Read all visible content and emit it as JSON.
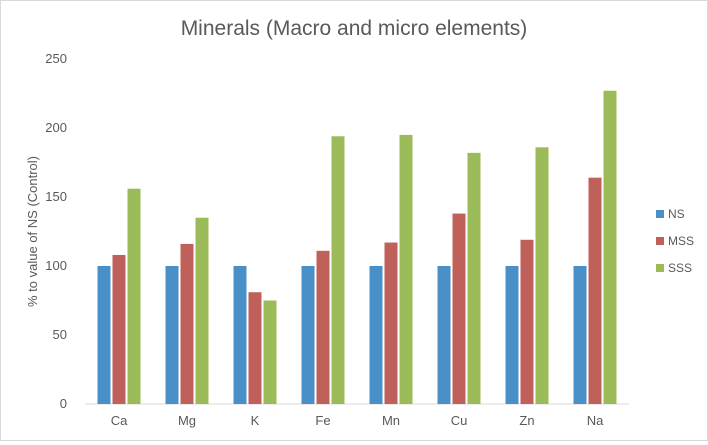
{
  "chart_data": {
    "type": "bar",
    "title": "Minerals (Macro and micro elements)",
    "xlabel": "",
    "ylabel": "% to value of NS (Control)",
    "ylim": [
      0,
      250
    ],
    "yticks": [
      0,
      50,
      100,
      150,
      200,
      250
    ],
    "grid": false,
    "legend_position": "right",
    "categories": [
      "Ca",
      "Mg",
      "K",
      "Fe",
      "Mn",
      "Cu",
      "Zn",
      "Na"
    ],
    "series": [
      {
        "name": "NS",
        "color": "#4a90c8",
        "values": [
          100,
          100,
          100,
          100,
          100,
          100,
          100,
          100
        ]
      },
      {
        "name": "MSS",
        "color": "#c0605a",
        "values": [
          108,
          116,
          81,
          111,
          117,
          138,
          119,
          164
        ]
      },
      {
        "name": "SSS",
        "color": "#9bbb59",
        "values": [
          156,
          135,
          75,
          194,
          195,
          182,
          186,
          227
        ]
      }
    ]
  }
}
